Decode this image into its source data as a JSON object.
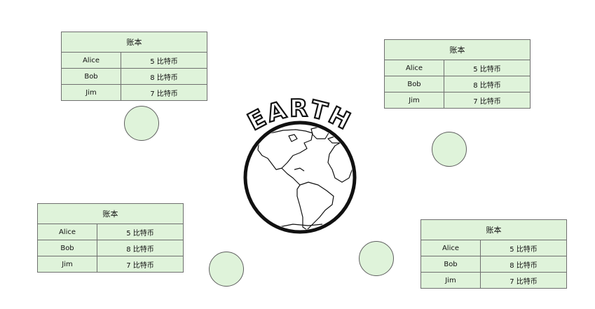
{
  "earth": {
    "label": "EARTH"
  },
  "ledgers": [
    {
      "title": "账本",
      "rows": [
        {
          "name": "Alice",
          "amount": "5 比特币"
        },
        {
          "name": "Bob",
          "amount": "8 比特币"
        },
        {
          "name": "Jim",
          "amount": "7 比特币"
        }
      ]
    },
    {
      "title": "账本",
      "rows": [
        {
          "name": "Alice",
          "amount": "5 比特币"
        },
        {
          "name": "Bob",
          "amount": "8 比特币"
        },
        {
          "name": "Jim",
          "amount": "7 比特币"
        }
      ]
    },
    {
      "title": "账本",
      "rows": [
        {
          "name": "Alice",
          "amount": "5 比特币"
        },
        {
          "name": "Bob",
          "amount": "8 比特币"
        },
        {
          "name": "Jim",
          "amount": "7 比特币"
        }
      ]
    },
    {
      "title": "账本",
      "rows": [
        {
          "name": "Alice",
          "amount": "5 比特币"
        },
        {
          "name": "Bob",
          "amount": "8 比特币"
        },
        {
          "name": "Jim",
          "amount": "7 比特币"
        }
      ]
    }
  ],
  "colors": {
    "fill": "#dff3da",
    "border": "#6f6f6f"
  }
}
